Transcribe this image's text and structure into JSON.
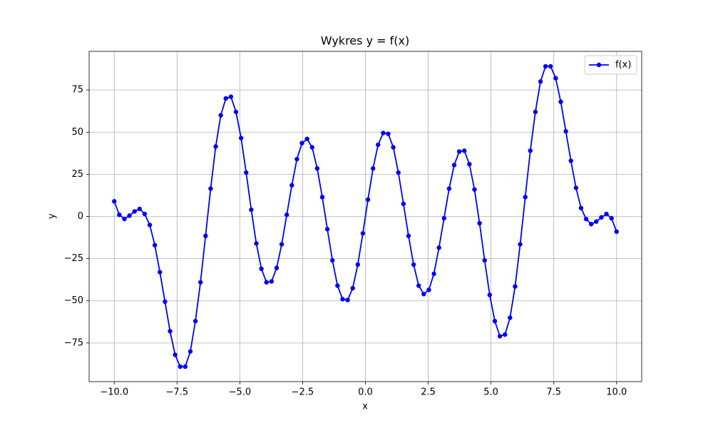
{
  "chart_data": {
    "type": "line",
    "title": "Wykres y = f(x)",
    "xlabel": "x",
    "ylabel": "y",
    "x": [
      -10,
      -9.798,
      -9.596,
      -9.394,
      -9.192,
      -8.99,
      -8.788,
      -8.586,
      -8.384,
      -8.182,
      -7.98,
      -7.778,
      -7.576,
      -7.374,
      -7.172,
      -6.97,
      -6.768,
      -6.566,
      -6.364,
      -6.162,
      -5.96,
      -5.758,
      -5.556,
      -5.354,
      -5.152,
      -4.949,
      -4.747,
      -4.545,
      -4.343,
      -4.141,
      -3.939,
      -3.737,
      -3.535,
      -3.333,
      -3.131,
      -2.929,
      -2.727,
      -2.525,
      -2.323,
      -2.121,
      -1.919,
      -1.717,
      -1.515,
      -1.313,
      -1.111,
      -0.909,
      -0.707,
      -0.505,
      -0.303,
      -0.101,
      0.101,
      0.303,
      0.505,
      0.707,
      0.909,
      1.111,
      1.313,
      1.515,
      1.717,
      1.919,
      2.121,
      2.323,
      2.525,
      2.727,
      2.929,
      3.131,
      3.333,
      3.535,
      3.737,
      3.939,
      4.141,
      4.343,
      4.545,
      4.747,
      4.949,
      5.152,
      5.354,
      5.556,
      5.758,
      5.96,
      6.162,
      6.364,
      6.566,
      6.768,
      6.97,
      7.172,
      7.374,
      7.576,
      7.778,
      7.98,
      8.182,
      8.384,
      8.586,
      8.788,
      8.99,
      9.192,
      9.394,
      9.596,
      9.798,
      10
    ],
    "series": [
      {
        "name": "f(x)",
        "color": "#0000ff",
        "values": [
          9,
          1,
          -1.5,
          0.5,
          3,
          4.5,
          1.5,
          -5,
          -17,
          -33,
          -50.5,
          -68,
          -82,
          -89,
          -89,
          -80,
          -62,
          -39,
          -11.5,
          16.5,
          41.5,
          60,
          70,
          71,
          62,
          46.5,
          26,
          4,
          -16,
          -31,
          -39,
          -38.5,
          -30.5,
          -16.5,
          1,
          18.5,
          34,
          43.5,
          46,
          41,
          28.5,
          11.5,
          -7.5,
          -26,
          -41,
          -49,
          -49.5,
          -42.5,
          -28.5,
          -10,
          10,
          28.5,
          42.5,
          49.5,
          49,
          41,
          26,
          7.5,
          -11.5,
          -28.5,
          -41,
          -46,
          -43.5,
          -34,
          -18.5,
          -1,
          16.5,
          30.5,
          38.5,
          39,
          31,
          16,
          -4,
          -26,
          -46.5,
          -62,
          -71,
          -70,
          -60,
          -41.5,
          -16.5,
          11.5,
          39,
          62,
          80,
          89,
          89,
          82,
          68,
          50.5,
          33,
          17,
          5,
          -1.5,
          -4.5,
          -3,
          -0.5,
          1.5,
          -1,
          -9
        ]
      }
    ],
    "xlim": [
      -11,
      11
    ],
    "xticks": [
      {
        "value": -10,
        "label": "−10.0"
      },
      {
        "value": -7.5,
        "label": "−7.5"
      },
      {
        "value": -5,
        "label": "−5.0"
      },
      {
        "value": -2.5,
        "label": "−2.5"
      },
      {
        "value": 0,
        "label": "0.0"
      },
      2.5,
      {
        "value": 5,
        "label": "5.0"
      },
      7.5,
      {
        "value": 10,
        "label": "10.0"
      }
    ],
    "ylim": [
      -97.9,
      97.9
    ],
    "yticks": [
      {
        "value": -75,
        "label": "−75"
      },
      {
        "value": -50,
        "label": "−50"
      },
      {
        "value": -25,
        "label": "−25"
      },
      0,
      25,
      50,
      75
    ],
    "grid": true,
    "legend": "upper right",
    "marker": true
  }
}
